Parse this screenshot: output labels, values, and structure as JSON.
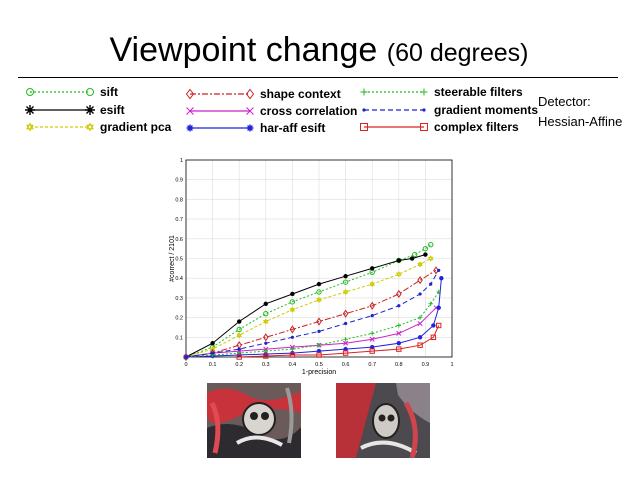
{
  "slide": {
    "title": "Viewpoint change",
    "subtitle": "(60 degrees)",
    "detector_label": "Detector:",
    "detector_value": "Hessian-Affine"
  },
  "legend": [
    {
      "label": "sift",
      "color": "#22bb22",
      "marker": "circle",
      "dash": "2,2"
    },
    {
      "label": "esift",
      "color": "#000000",
      "marker": "asterisk",
      "dash": ""
    },
    {
      "label": "gradient pca",
      "color": "#cccc00",
      "marker": "hexagram",
      "dash": "3,2"
    },
    {
      "label": "shape context",
      "color": "#cc2222",
      "marker": "diamond",
      "dash": "6,2,2,2"
    },
    {
      "label": "cross correlation",
      "color": "#cc22cc",
      "marker": "x",
      "dash": ""
    },
    {
      "label": "har-aff esift",
      "color": "#2222dd",
      "marker": "asterisk",
      "dash": ""
    },
    {
      "label": "steerable filters",
      "color": "#22bb22",
      "marker": "plus",
      "dash": "2,2"
    },
    {
      "label": "gradient moments",
      "color": "#2222cc",
      "marker": "dot",
      "dash": "5,3"
    },
    {
      "label": "complex filters",
      "color": "#dd2222",
      "marker": "square",
      "dash": ""
    }
  ],
  "chart_data": {
    "type": "line",
    "xlabel": "1-precision",
    "ylabel": "#correct / 2101",
    "xlim": [
      0,
      1
    ],
    "ylim": [
      0,
      1
    ],
    "xticks": [
      "0",
      "0.1",
      "0.2",
      "0.3",
      "0.4",
      "0.5",
      "0.6",
      "0.7",
      "0.8",
      "0.9",
      "1"
    ],
    "yticks": [
      "0.1",
      "0.2",
      "0.3",
      "0.4",
      "0.5",
      "0.6",
      "0.7",
      "0.8",
      "0.9",
      "1"
    ],
    "grid": true,
    "series": [
      {
        "name": "sift",
        "color": "#22bb22",
        "marker": "circle",
        "dash": "2,2",
        "x": [
          0,
          0.1,
          0.2,
          0.3,
          0.4,
          0.5,
          0.6,
          0.7,
          0.8,
          0.86,
          0.9,
          0.92
        ],
        "y": [
          0,
          0.05,
          0.14,
          0.22,
          0.28,
          0.33,
          0.38,
          0.43,
          0.49,
          0.52,
          0.55,
          0.57
        ]
      },
      {
        "name": "esift",
        "color": "#000000",
        "marker": "asterisk",
        "dash": "",
        "x": [
          0,
          0.1,
          0.2,
          0.3,
          0.4,
          0.5,
          0.6,
          0.7,
          0.8,
          0.85,
          0.9
        ],
        "y": [
          0,
          0.07,
          0.18,
          0.27,
          0.32,
          0.37,
          0.41,
          0.45,
          0.49,
          0.5,
          0.52
        ]
      },
      {
        "name": "gradient pca",
        "color": "#cccc00",
        "marker": "hexagram",
        "dash": "3,2",
        "x": [
          0,
          0.1,
          0.2,
          0.3,
          0.4,
          0.5,
          0.6,
          0.7,
          0.8,
          0.88,
          0.92
        ],
        "y": [
          0,
          0.04,
          0.11,
          0.18,
          0.24,
          0.29,
          0.33,
          0.37,
          0.42,
          0.47,
          0.5
        ]
      },
      {
        "name": "shape context",
        "color": "#cc2222",
        "marker": "diamond",
        "dash": "6,2,2,2",
        "x": [
          0,
          0.1,
          0.2,
          0.3,
          0.4,
          0.5,
          0.6,
          0.7,
          0.8,
          0.88,
          0.94
        ],
        "y": [
          0,
          0.02,
          0.06,
          0.1,
          0.14,
          0.18,
          0.22,
          0.26,
          0.32,
          0.39,
          0.44
        ]
      },
      {
        "name": "cross correlation",
        "color": "#cc22cc",
        "marker": "x",
        "dash": "",
        "x": [
          0,
          0.1,
          0.2,
          0.3,
          0.4,
          0.5,
          0.6,
          0.7,
          0.8,
          0.88,
          0.94
        ],
        "y": [
          0,
          0.02,
          0.03,
          0.04,
          0.05,
          0.06,
          0.07,
          0.09,
          0.12,
          0.17,
          0.25
        ]
      },
      {
        "name": "har-aff esift",
        "color": "#2222dd",
        "marker": "asterisk",
        "dash": "",
        "x": [
          0,
          0.1,
          0.2,
          0.3,
          0.4,
          0.5,
          0.6,
          0.7,
          0.8,
          0.88,
          0.93,
          0.95,
          0.96
        ],
        "y": [
          0,
          0.005,
          0.01,
          0.015,
          0.02,
          0.03,
          0.04,
          0.05,
          0.07,
          0.1,
          0.16,
          0.25,
          0.4
        ]
      },
      {
        "name": "steerable filters",
        "color": "#22bb22",
        "marker": "plus",
        "dash": "2,2",
        "x": [
          0,
          0.1,
          0.2,
          0.3,
          0.4,
          0.5,
          0.6,
          0.7,
          0.8,
          0.88,
          0.92,
          0.95
        ],
        "y": [
          0,
          0.01,
          0.02,
          0.03,
          0.04,
          0.06,
          0.09,
          0.12,
          0.16,
          0.2,
          0.27,
          0.33
        ]
      },
      {
        "name": "gradient moments",
        "color": "#2222cc",
        "marker": "dot",
        "dash": "5,3",
        "x": [
          0,
          0.1,
          0.2,
          0.3,
          0.4,
          0.5,
          0.6,
          0.7,
          0.8,
          0.88,
          0.92,
          0.95
        ],
        "y": [
          0,
          0.02,
          0.04,
          0.07,
          0.1,
          0.13,
          0.17,
          0.21,
          0.26,
          0.32,
          0.37,
          0.44
        ]
      },
      {
        "name": "complex filters",
        "color": "#dd2222",
        "marker": "square",
        "dash": "",
        "x": [
          0.2,
          0.3,
          0.4,
          0.5,
          0.6,
          0.7,
          0.8,
          0.88,
          0.93,
          0.95
        ],
        "y": [
          0,
          0.005,
          0.01,
          0.01,
          0.02,
          0.03,
          0.04,
          0.06,
          0.1,
          0.16
        ]
      }
    ]
  }
}
